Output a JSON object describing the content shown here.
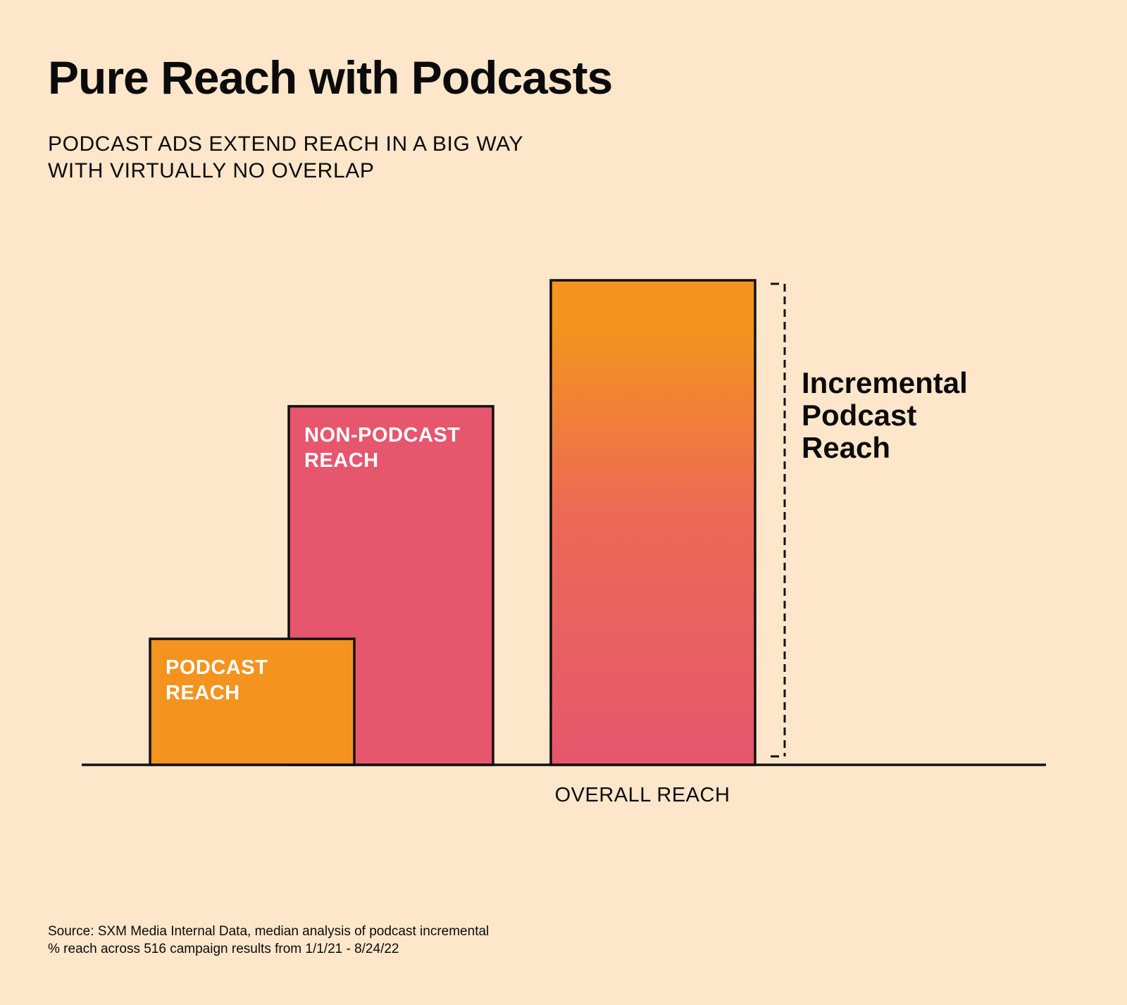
{
  "header": {
    "title": "Pure Reach with Podcasts",
    "subtitle_lines": [
      "PODCAST ADS EXTEND REACH IN A BIG WAY",
      "WITH VIRTUALLY NO OVERLAP"
    ]
  },
  "chart_data": {
    "type": "bar",
    "title": "Pure Reach with Podcasts",
    "subtitle": "PODCAST ADS EXTEND REACH IN A BIG WAY WITH VIRTUALLY NO OVERLAP",
    "xlabel": "OVERALL REACH",
    "ylabel": "",
    "grid": false,
    "bars": [
      {
        "id": "podcast",
        "label_lines": [
          "PODCAST",
          "REACH"
        ],
        "value": 26,
        "fill": "orange"
      },
      {
        "id": "nonpodcast",
        "label_lines": [
          "NON-PODCAST",
          "REACH"
        ],
        "value": 74,
        "fill": "pink"
      },
      {
        "id": "overall",
        "label_lines": [],
        "value": 100,
        "fill": "gradient"
      }
    ],
    "annotation": {
      "label_lines": [
        "Incremental",
        "Podcast",
        "Reach"
      ],
      "spans_bar": "overall"
    },
    "ylim": [
      0,
      100
    ]
  },
  "colors": {
    "background": "#FDE6CA",
    "orange": "#F4931E",
    "pink": "#E6566D",
    "outline": "#111111"
  },
  "footer": {
    "source_lines": [
      "Source: SXM Media Internal Data, median analysis of podcast incremental",
      "% reach across 516 campaign results from 1/1/21 - 8/24/22"
    ]
  }
}
